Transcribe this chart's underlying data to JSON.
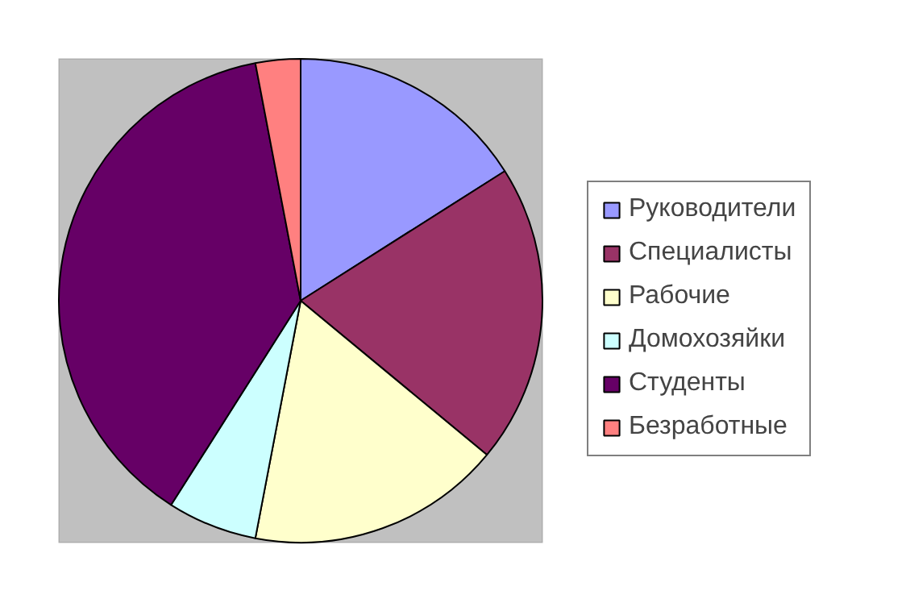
{
  "chart_data": {
    "type": "pie",
    "categories": [
      "Руководители",
      "Специалисты",
      "Рабочие",
      "Домохозяйки",
      "Студенты",
      "Безработные"
    ],
    "values": [
      16,
      20,
      17,
      6,
      38,
      3
    ],
    "colors": [
      "#9999ff",
      "#993366",
      "#ffffcc",
      "#ccffff",
      "#660066",
      "#ff8080"
    ],
    "legend": "right"
  }
}
